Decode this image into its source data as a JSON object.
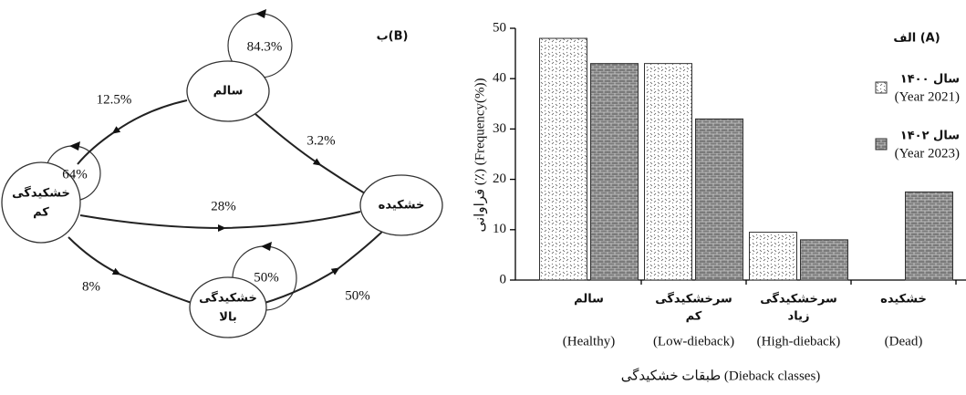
{
  "diagram": {
    "title": "ب(B)",
    "nodes": [
      {
        "lines": [
          "سالم"
        ]
      },
      {
        "lines": [
          "خشکیدگی",
          "کم"
        ]
      },
      {
        "lines": [
          "خشکیده"
        ]
      },
      {
        "lines": [
          "خشکیدگی",
          "بالا"
        ]
      }
    ],
    "loops": [
      "84.3%",
      "64%",
      "50%"
    ],
    "edges": [
      "12.5%",
      "3.2%",
      "28%",
      "8%",
      "50%"
    ]
  },
  "chart_data": {
    "type": "bar",
    "title": "الف (A)",
    "x_label": "طبقات خشکیدگی (Dieback classes)",
    "y_label": "فراوانی (٪) (Frequency(%))",
    "categories": [
      "(Healthy)",
      "(Low-dieback)",
      "(High-dieback)",
      "(Dead)"
    ],
    "categories_fa": [
      [
        "سالم"
      ],
      [
        "سرخشکیدگی",
        "کم"
      ],
      [
        "سرخشکیدگی",
        "زیاد"
      ],
      [
        "خشکیده"
      ]
    ],
    "series": [
      {
        "name": "سال ۱۴۰۰",
        "name_en": "(Year 2021)",
        "pattern": "dots",
        "color": "#ffffff",
        "values": [
          48,
          43,
          9.5,
          0
        ]
      },
      {
        "name": "سال ۱۴۰۲",
        "name_en": "(Year 2023)",
        "pattern": "bricks",
        "color": "#7a7a7a",
        "values": [
          43,
          32,
          8,
          17.5
        ]
      }
    ],
    "ylim": [
      0,
      50
    ],
    "yticks": [
      0,
      10,
      20,
      30,
      40,
      50
    ]
  }
}
